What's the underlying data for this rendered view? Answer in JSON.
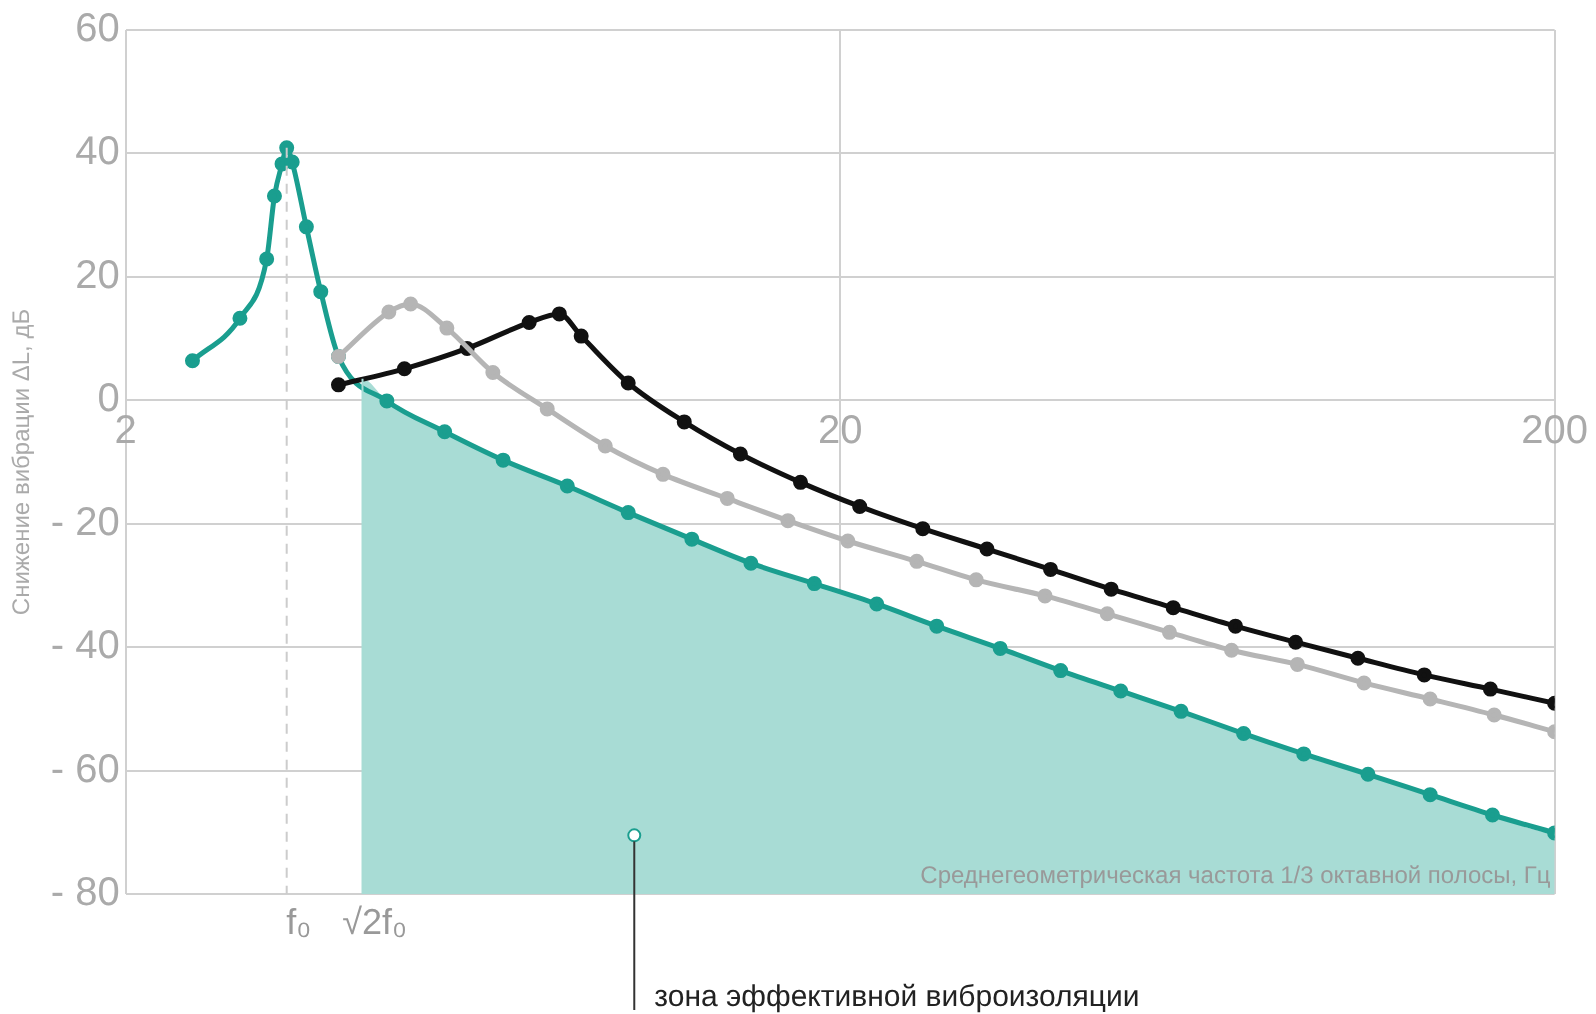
{
  "chart_data": {
    "type": "line",
    "xlabel": "Среднегеометрическая частота 1/3 октавной полосы, Гц",
    "ylabel": "Снижение вибрации ΔL, дБ",
    "log": "x",
    "grid": true,
    "marker": "circle",
    "xlim": [
      2,
      200
    ],
    "xticks": [
      2,
      20,
      200
    ],
    "ylim": [
      -80,
      60
    ],
    "yticks": [
      60,
      40,
      20,
      0,
      {
        "value": -20,
        "label": "- 20"
      },
      {
        "value": -40,
        "label": "- 40"
      },
      {
        "value": -60,
        "label": "- 60"
      },
      {
        "value": -80,
        "label": "- 80"
      }
    ],
    "ref_lines": [
      {
        "axis": "x",
        "value": 3.36,
        "label": "f₀",
        "color": "#cccccc",
        "line_style": "dashed"
      },
      {
        "axis": "x",
        "value": 4.29,
        "label": "√2f₀",
        "color": "#a8dcd5",
        "line_style": "solid"
      }
    ],
    "annotations": [
      {
        "text": "зона эффективной виброизоляции",
        "x": 10.3,
        "y": -70.5
      }
    ],
    "series": [
      {
        "type": "area",
        "color": "#a8dcd5",
        "marker": "none",
        "x": [
          4.29,
          4.29,
          4.64,
          5.59,
          6.75,
          8.3,
          10.1,
          12.4,
          15,
          18.4,
          22.5,
          27.3,
          33.5,
          40.7,
          49.4,
          60,
          73.4,
          89.1,
          109.6,
          133.9,
          163.7,
          200,
          200
        ],
        "values": [
          -80,
          3.5,
          -0.1,
          -5.1,
          -9.7,
          -13.9,
          -18.2,
          -22.5,
          -26.4,
          -29.7,
          -33,
          -36.6,
          -40.2,
          -43.8,
          -47.1,
          -50.4,
          -54,
          -57.3,
          -60.6,
          -63.9,
          -67.2,
          -70.1,
          -80
        ]
      },
      {
        "color": "#b5b5b5",
        "x": [
          3.97,
          4.67,
          5.01,
          5.63,
          6.53,
          7.78,
          9.38,
          11.3,
          13.9,
          16.9,
          20.5,
          25.6,
          31,
          38.7,
          47.3,
          57.8,
          70.6,
          87.3,
          108.2,
          133.9,
          164.6,
          200
        ],
        "values": [
          7.1,
          14.3,
          15.6,
          11.7,
          4.5,
          -1.4,
          -7.4,
          -12,
          -15.9,
          -19.5,
          -22.8,
          -26.1,
          -29.1,
          -31.7,
          -34.6,
          -37.6,
          -40.5,
          -42.8,
          -45.8,
          -48.4,
          -51,
          -53.7
        ]
      },
      {
        "color": "#111111",
        "x": [
          3.97,
          4.91,
          6.01,
          7.34,
          8.09,
          8.68,
          10.1,
          12.1,
          14.5,
          17.6,
          21.3,
          26.1,
          32.1,
          39.4,
          47.9,
          58.5,
          71.5,
          86.8,
          106.1,
          131.4,
          162.6,
          200
        ],
        "values": [
          2.5,
          5.1,
          8.4,
          12.6,
          14,
          10.4,
          2.8,
          -3.5,
          -8.7,
          -13.3,
          -17.2,
          -20.8,
          -24.1,
          -27.4,
          -30.6,
          -33.6,
          -36.6,
          -39.2,
          -41.8,
          -44.5,
          -46.8,
          -49.1
        ]
      },
      {
        "color": "#1a9e8f",
        "x": [
          2.48,
          2.89,
          3.15,
          3.23,
          3.31,
          3.36,
          3.42,
          3.58,
          3.75,
          3.97,
          4.64,
          5.59,
          6.75,
          8.3,
          10.1,
          12.4,
          15,
          18.4,
          22.5,
          27.3,
          33.5,
          40.7,
          49.4,
          60,
          73.4,
          89.1,
          109.6,
          133.9,
          163.7,
          200
        ],
        "values": [
          6.4,
          13.3,
          22.9,
          33.1,
          38.3,
          40.9,
          38.6,
          28.1,
          17.6,
          7.1,
          -0.1,
          -5.1,
          -9.7,
          -13.9,
          -18.2,
          -22.5,
          -26.4,
          -29.7,
          -33,
          -36.6,
          -40.2,
          -43.8,
          -47.1,
          -50.4,
          -54,
          -57.3,
          -60.6,
          -63.9,
          -67.2,
          -70.1
        ]
      }
    ]
  }
}
